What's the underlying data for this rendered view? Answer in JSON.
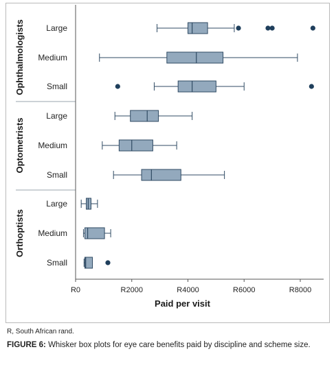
{
  "chart_data": {
    "type": "box",
    "xlabel": "Paid per visit",
    "xlim": [
      0,
      8500
    ],
    "x_ticks": [
      0,
      2000,
      4000,
      6000,
      8000
    ],
    "x_tick_labels": [
      "R0",
      "R2000",
      "R4000",
      "R6000",
      "R8000"
    ],
    "grid": false,
    "groups": [
      {
        "name": "Ophthalmologists",
        "boxes": [
          {
            "label": "Large",
            "whisker_low": 2900,
            "q1": 4000,
            "median": 4150,
            "q3": 4700,
            "whisker_high": 5650,
            "outliers": [
              5800,
              6850,
              7000,
              8450
            ]
          },
          {
            "label": "Medium",
            "whisker_low": 850,
            "q1": 3250,
            "median": 4300,
            "q3": 5250,
            "whisker_high": 7900,
            "outliers": []
          },
          {
            "label": "Small",
            "whisker_low": 2800,
            "q1": 3650,
            "median": 4150,
            "q3": 5000,
            "whisker_high": 6000,
            "outliers": [
              1500,
              8400
            ]
          }
        ]
      },
      {
        "name": "Optometrists",
        "boxes": [
          {
            "label": "Large",
            "whisker_low": 1400,
            "q1": 1950,
            "median": 2550,
            "q3": 2950,
            "whisker_high": 4150,
            "outliers": []
          },
          {
            "label": "Medium",
            "whisker_low": 950,
            "q1": 1550,
            "median": 2000,
            "q3": 2750,
            "whisker_high": 3600,
            "outliers": []
          },
          {
            "label": "Small",
            "whisker_low": 1350,
            "q1": 2350,
            "median": 2700,
            "q3": 3750,
            "whisker_high": 5300,
            "outliers": []
          }
        ]
      },
      {
        "name": "Orthoptists",
        "boxes": [
          {
            "label": "Large",
            "whisker_low": 200,
            "q1": 380,
            "median": 450,
            "q3": 550,
            "whisker_high": 780,
            "outliers": []
          },
          {
            "label": "Medium",
            "whisker_low": 280,
            "q1": 330,
            "median": 430,
            "q3": 1030,
            "whisker_high": 1250,
            "outliers": []
          },
          {
            "label": "Small",
            "whisker_low": 300,
            "q1": 330,
            "median": 360,
            "q3": 600,
            "whisker_high": 600,
            "outliers": [
              1150
            ]
          }
        ]
      }
    ],
    "colors": {
      "box_fill": "#93a9bd",
      "box_stroke": "#2f4a63",
      "whisker": "#2f4a63",
      "outlier": "#1f3f5c",
      "separator": "#9aa4ad"
    }
  },
  "note": "R, South African rand.",
  "caption": {
    "label": "FIGURE 6:",
    "text": " Whisker box plots for eye care benefits paid by discipline and scheme size."
  }
}
